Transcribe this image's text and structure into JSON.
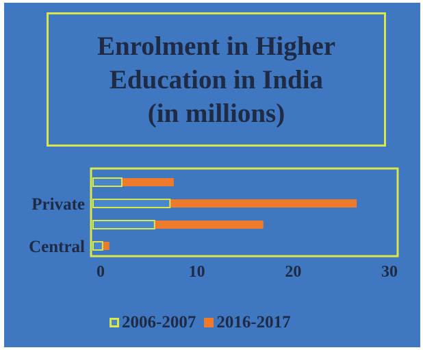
{
  "chart_data": {
    "type": "bar",
    "orientation": "horizontal",
    "title": "Enrolment in Higher\nEducation in India\n(in millions)",
    "categories": [
      "",
      "Private",
      "",
      "Central"
    ],
    "series": [
      {
        "name": "2006-2007",
        "values": [
          2.2,
          7.2,
          5.6,
          0.2
        ],
        "color": "#4a86cc"
      },
      {
        "name": "2016-2017",
        "values": [
          7.6,
          26.6,
          16.9,
          0.9
        ],
        "color": "#f07a2c"
      }
    ],
    "xticks": [
      "0",
      "10",
      "20",
      "30"
    ],
    "xlim": [
      0,
      30
    ],
    "legend_position": "bottom",
    "grid": false
  }
}
